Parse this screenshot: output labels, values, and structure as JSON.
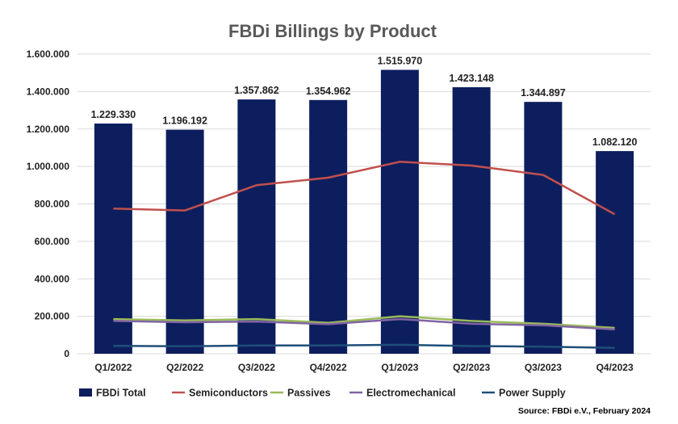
{
  "chart_data": {
    "type": "bar",
    "title": "FBDi Billings by Product",
    "xlabel": "",
    "ylabel": "",
    "ylim": [
      0,
      1600000
    ],
    "yticks": [
      0,
      200000,
      400000,
      600000,
      800000,
      1000000,
      1200000,
      1400000,
      1600000
    ],
    "ytick_labels": [
      "0",
      "200.000",
      "400.000",
      "600.000",
      "800.000",
      "1.000.000",
      "1.200.000",
      "1.400.000",
      "1.600.000"
    ],
    "grid": true,
    "legend": "bottom",
    "categories": [
      "Q1/2022",
      "Q2/2022",
      "Q3/2022",
      "Q4/2022",
      "Q1/2023",
      "Q2/2023",
      "Q3/2023",
      "Q4/2023"
    ],
    "series": [
      {
        "name": "FBDi Total",
        "kind": "bar",
        "color": "#0d1e5e",
        "values": [
          1229330,
          1196192,
          1357862,
          1354962,
          1515970,
          1423148,
          1344897,
          1082120
        ],
        "labels": [
          "1.229.330",
          "1.196.192",
          "1.357.862",
          "1.354.962",
          "1.515.970",
          "1.423.148",
          "1.344.897",
          "1.082.120"
        ]
      },
      {
        "name": "Semiconductors",
        "kind": "line",
        "color": "#c0504d",
        "values": [
          775000,
          765000,
          900000,
          940000,
          1025000,
          1005000,
          955000,
          745000
        ]
      },
      {
        "name": "Passives",
        "kind": "line",
        "color": "#9bbb59",
        "values": [
          185000,
          178000,
          185000,
          165000,
          200000,
          175000,
          160000,
          138000
        ]
      },
      {
        "name": "Electromechanical",
        "kind": "line",
        "color": "#8064a2",
        "values": [
          175000,
          168000,
          172000,
          158000,
          185000,
          160000,
          152000,
          130000
        ]
      },
      {
        "name": "Power Supply",
        "kind": "line",
        "color": "#1f4e79",
        "values": [
          42000,
          40000,
          44000,
          44000,
          48000,
          41000,
          38000,
          31000
        ]
      }
    ],
    "source": "Source: FBDi e.V., February 2024"
  }
}
